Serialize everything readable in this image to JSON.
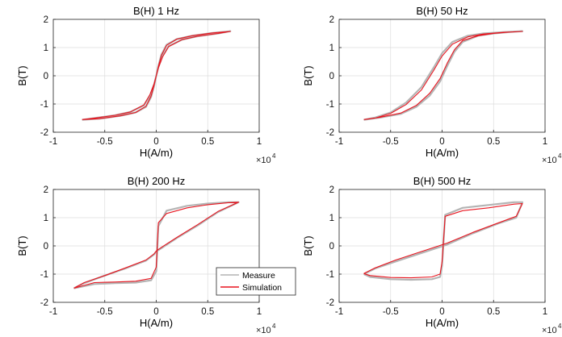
{
  "chart_data": [
    {
      "type": "line",
      "title": "B(H) 1 Hz",
      "xlabel": "H(A/m)",
      "ylabel": "B(T)",
      "x_multiplier": "×10",
      "x_exponent": "4",
      "xlim": [
        -1,
        1
      ],
      "ylim": [
        -2,
        2
      ],
      "xticks": [
        "-1",
        "-0.5",
        "0",
        "0.5",
        "1"
      ],
      "yticks": [
        "2",
        "1",
        "0",
        "-1",
        "-2"
      ],
      "grid": true,
      "series": [
        {
          "name": "Measure",
          "color": "#b4b4b4",
          "x": [
            -0.72,
            -0.6,
            -0.4,
            -0.25,
            -0.12,
            -0.06,
            -0.02,
            0.0,
            0.02,
            0.05,
            0.1,
            0.2,
            0.35,
            0.55,
            0.72,
            0.6,
            0.4,
            0.25,
            0.12,
            0.06,
            0.02,
            0.0,
            -0.02,
            -0.05,
            -0.1,
            -0.2,
            -0.35,
            -0.55,
            -0.72
          ],
          "y": [
            -1.56,
            -1.5,
            -1.4,
            -1.28,
            -1.05,
            -0.7,
            -0.3,
            0.0,
            0.35,
            0.75,
            1.1,
            1.3,
            1.42,
            1.52,
            1.58,
            1.5,
            1.4,
            1.28,
            1.05,
            0.7,
            0.3,
            0.0,
            -0.35,
            -0.75,
            -1.1,
            -1.3,
            -1.42,
            -1.52,
            -1.56
          ]
        },
        {
          "name": "Simulation",
          "color": "#e8141e",
          "x": [
            -0.72,
            -0.6,
            -0.4,
            -0.25,
            -0.12,
            -0.06,
            -0.02,
            0.0,
            0.02,
            0.05,
            0.1,
            0.2,
            0.35,
            0.55,
            0.72,
            0.6,
            0.4,
            0.25,
            0.12,
            0.06,
            0.02,
            0.0,
            -0.02,
            -0.05,
            -0.1,
            -0.2,
            -0.35,
            -0.55,
            -0.72
          ],
          "y": [
            -1.55,
            -1.5,
            -1.4,
            -1.28,
            -1.03,
            -0.66,
            -0.28,
            0.0,
            0.32,
            0.72,
            1.08,
            1.3,
            1.42,
            1.52,
            1.57,
            1.5,
            1.4,
            1.28,
            1.03,
            0.66,
            0.28,
            0.0,
            -0.32,
            -0.72,
            -1.08,
            -1.3,
            -1.42,
            -1.52,
            -1.55
          ]
        }
      ]
    },
    {
      "type": "line",
      "title": "B(H) 50 Hz",
      "xlabel": "H(A/m)",
      "ylabel": "B(T)",
      "x_multiplier": "×10",
      "x_exponent": "4",
      "xlim": [
        -1,
        1
      ],
      "ylim": [
        -2,
        2
      ],
      "xticks": [
        "-1",
        "-0.5",
        "0",
        "0.5",
        "1"
      ],
      "yticks": [
        "2",
        "1",
        "0",
        "-1",
        "-2"
      ],
      "grid": true,
      "series": [
        {
          "name": "Measure",
          "color": "#b4b4b4",
          "x": [
            -0.76,
            -0.6,
            -0.4,
            -0.25,
            -0.12,
            -0.02,
            0.05,
            0.12,
            0.2,
            0.35,
            0.5,
            0.65,
            0.78,
            0.6,
            0.4,
            0.25,
            0.1,
            0.0,
            -0.08,
            -0.2,
            -0.35,
            -0.5,
            -0.65,
            -0.76
          ],
          "y": [
            -1.56,
            -1.48,
            -1.35,
            -1.1,
            -0.7,
            -0.2,
            0.35,
            0.85,
            1.2,
            1.42,
            1.5,
            1.55,
            1.58,
            1.55,
            1.5,
            1.42,
            1.2,
            0.8,
            0.3,
            -0.4,
            -0.95,
            -1.3,
            -1.48,
            -1.56
          ]
        },
        {
          "name": "Simulation",
          "color": "#e8141e",
          "x": [
            -0.76,
            -0.6,
            -0.4,
            -0.25,
            -0.12,
            -0.02,
            0.05,
            0.12,
            0.2,
            0.35,
            0.5,
            0.65,
            0.78,
            0.6,
            0.4,
            0.25,
            0.1,
            0.0,
            -0.08,
            -0.2,
            -0.35,
            -0.5,
            -0.65,
            -0.76
          ],
          "y": [
            -1.55,
            -1.47,
            -1.32,
            -1.05,
            -0.62,
            -0.1,
            0.45,
            0.92,
            1.25,
            1.42,
            1.5,
            1.55,
            1.57,
            1.54,
            1.48,
            1.38,
            1.12,
            0.7,
            0.2,
            -0.5,
            -1.02,
            -1.33,
            -1.5,
            -1.55
          ]
        }
      ]
    },
    {
      "type": "line",
      "title": "B(H) 200 Hz",
      "xlabel": "H(A/m)",
      "ylabel": "B(T)",
      "x_multiplier": "×10",
      "x_exponent": "4",
      "xlim": [
        -1,
        1
      ],
      "ylim": [
        -2,
        2
      ],
      "xticks": [
        "-1",
        "-0.5",
        "0",
        "0.5",
        "1"
      ],
      "yticks": [
        "2",
        "1",
        "0",
        "-1",
        "-2"
      ],
      "grid": true,
      "series": [
        {
          "name": "Measure",
          "color": "#b4b4b4",
          "x": [
            -0.8,
            -0.6,
            -0.4,
            -0.2,
            -0.05,
            0.0,
            0.02,
            0.1,
            0.3,
            0.5,
            0.7,
            0.8,
            0.6,
            0.4,
            0.2,
            0.05,
            0.0,
            -0.02,
            -0.1,
            -0.3,
            -0.5,
            -0.7,
            -0.8
          ],
          "y": [
            -1.5,
            -1.35,
            -1.32,
            -1.3,
            -1.22,
            -0.9,
            0.7,
            1.25,
            1.42,
            1.5,
            1.55,
            1.55,
            1.2,
            0.72,
            0.28,
            -0.08,
            -0.2,
            -0.3,
            -0.52,
            -0.8,
            -1.05,
            -1.32,
            -1.5
          ]
        },
        {
          "name": "Simulation",
          "color": "#e8141e",
          "x": [
            -0.8,
            -0.6,
            -0.4,
            -0.2,
            -0.05,
            0.0,
            0.02,
            0.1,
            0.3,
            0.5,
            0.7,
            0.8,
            0.6,
            0.4,
            0.2,
            0.05,
            0.0,
            -0.02,
            -0.1,
            -0.3,
            -0.5,
            -0.7,
            -0.8
          ],
          "y": [
            -1.5,
            -1.3,
            -1.28,
            -1.25,
            -1.15,
            -0.75,
            0.82,
            1.15,
            1.35,
            1.46,
            1.53,
            1.55,
            1.22,
            0.75,
            0.3,
            -0.05,
            -0.18,
            -0.28,
            -0.5,
            -0.78,
            -1.05,
            -1.3,
            -1.5
          ]
        }
      ]
    },
    {
      "type": "line",
      "title": "B(H) 500 Hz",
      "xlabel": "H(A/m)",
      "ylabel": "B(T)",
      "x_multiplier": "×10",
      "x_exponent": "4",
      "xlim": [
        -1,
        1
      ],
      "ylim": [
        -2,
        2
      ],
      "xticks": [
        "-1",
        "-0.5",
        "0",
        "0.5",
        "1"
      ],
      "yticks": [
        "2",
        "1",
        "0",
        "-1",
        "-2"
      ],
      "grid": true,
      "series": [
        {
          "name": "Measure",
          "color": "#b4b4b4",
          "x": [
            -0.76,
            -0.7,
            -0.5,
            -0.3,
            -0.1,
            -0.02,
            0.0,
            0.03,
            0.2,
            0.45,
            0.7,
            0.78,
            0.72,
            0.55,
            0.3,
            0.05,
            -0.2,
            -0.45,
            -0.65,
            -0.76
          ],
          "y": [
            -1.0,
            -1.1,
            -1.18,
            -1.2,
            -1.18,
            -1.1,
            -0.7,
            1.1,
            1.35,
            1.45,
            1.55,
            1.55,
            1.0,
            0.8,
            0.45,
            0.05,
            -0.25,
            -0.55,
            -0.8,
            -1.0
          ]
        },
        {
          "name": "Simulation",
          "color": "#e8141e",
          "x": [
            -0.76,
            -0.7,
            -0.5,
            -0.3,
            -0.1,
            -0.02,
            0.0,
            0.03,
            0.2,
            0.45,
            0.7,
            0.78,
            0.72,
            0.55,
            0.3,
            0.05,
            -0.2,
            -0.45,
            -0.65,
            -0.76
          ],
          "y": [
            -0.98,
            -1.05,
            -1.12,
            -1.13,
            -1.1,
            -1.0,
            -0.55,
            1.05,
            1.25,
            1.35,
            1.48,
            1.5,
            1.05,
            0.82,
            0.48,
            0.1,
            -0.2,
            -0.5,
            -0.78,
            -0.98
          ]
        }
      ]
    }
  ],
  "legend": {
    "location": "lower-right of the 200 Hz panel",
    "items": [
      {
        "label": "Measure",
        "color": "#b4b4b4"
      },
      {
        "label": "Simulation",
        "color": "#e8141e"
      }
    ]
  },
  "colors": {
    "axis": "#262626",
    "grid": "#dcdcdc"
  }
}
